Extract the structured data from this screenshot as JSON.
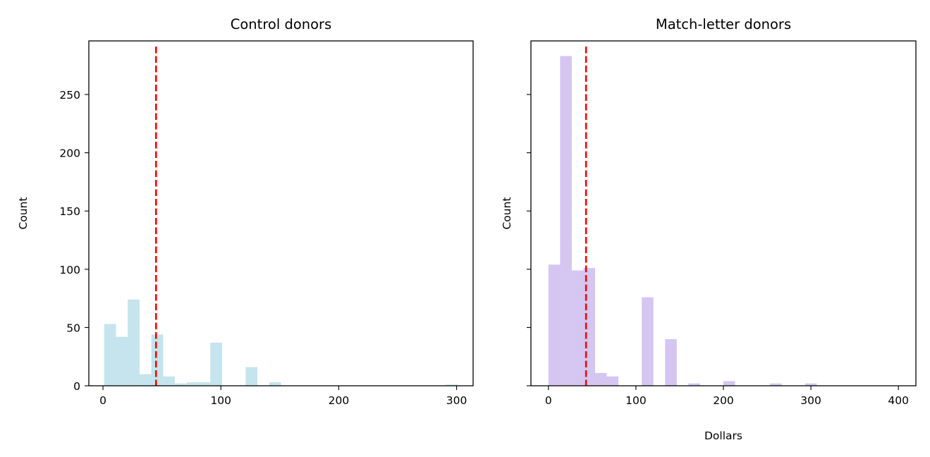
{
  "chart_data": [
    {
      "type": "bar",
      "subtype": "histogram",
      "title": "Control donors",
      "xlabel": "",
      "ylabel": "Count",
      "xlim": [
        -12,
        314
      ],
      "ylim": [
        0,
        296
      ],
      "xticks": [
        0,
        100,
        200,
        300
      ],
      "yticks": [
        0,
        50,
        100,
        150,
        200,
        250
      ],
      "bar_color": "#add8e6",
      "bar_opacity": 0.7,
      "bin_edges": [
        1,
        11,
        21,
        31,
        41,
        51,
        61,
        71,
        81,
        91,
        101,
        111,
        121,
        131,
        141,
        151,
        161,
        171,
        181,
        191,
        201,
        211,
        221,
        231,
        241,
        251,
        261,
        271,
        281,
        291,
        301
      ],
      "counts": [
        53,
        42,
        74,
        10,
        44,
        8,
        2,
        3,
        3,
        37,
        0,
        0,
        16,
        0,
        3,
        0,
        0,
        0,
        0,
        0,
        0,
        0,
        0,
        0,
        0,
        0,
        0,
        0,
        0,
        1
      ],
      "mean_line": {
        "x": 45,
        "color": "#ff0000",
        "style": "dashed"
      }
    },
    {
      "type": "bar",
      "subtype": "histogram",
      "title": "Match-letter donors",
      "xlabel": "Dollars",
      "ylabel": "Count",
      "xlim": [
        -20,
        420
      ],
      "ylim": [
        0,
        296
      ],
      "xticks": [
        0,
        100,
        200,
        300,
        400
      ],
      "yticks": [
        0,
        50,
        100,
        150,
        200,
        250
      ],
      "ytick_labels_shown": false,
      "bar_color": "#9370db",
      "bar_opacity": 0.4,
      "bin_edges": [
        0,
        13.33,
        26.67,
        40,
        53.33,
        66.67,
        80,
        93.33,
        106.67,
        120,
        133.33,
        146.67,
        160,
        173.33,
        186.67,
        200,
        213.33,
        226.67,
        240,
        253.33,
        266.67,
        280,
        293.33,
        306.67,
        320,
        333.33,
        346.67,
        360,
        373.33,
        386.67,
        400
      ],
      "counts": [
        104,
        283,
        99,
        101,
        11,
        8,
        0,
        0,
        76,
        0,
        40,
        0,
        2,
        0,
        0,
        4,
        0,
        0,
        0,
        2,
        0,
        0,
        2,
        0,
        0,
        0,
        0,
        0,
        0,
        0
      ],
      "mean_line": {
        "x": 43,
        "color": "#ff0000",
        "style": "dashed"
      }
    }
  ]
}
